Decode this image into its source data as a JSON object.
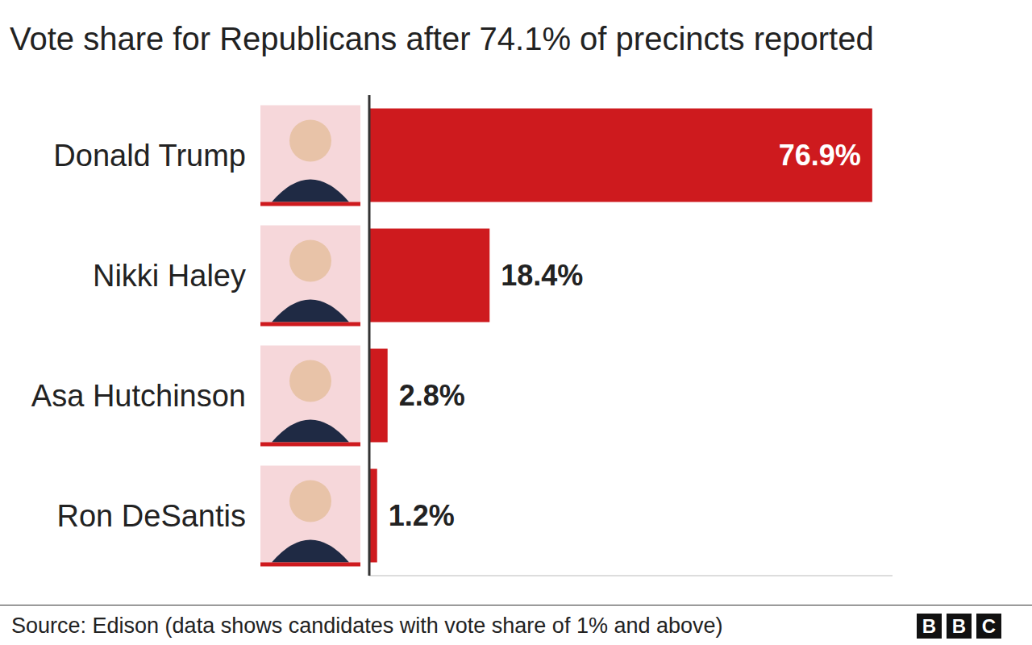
{
  "chart_data": {
    "type": "bar",
    "orientation": "horizontal",
    "title": "Vote share for Republicans after 74.1% of precincts reported",
    "source": "Source: Edison (data shows candidates with vote share of 1% and above)",
    "logo": "BBC",
    "categories": [
      "Donald Trump",
      "Nikki Haley",
      "Asa Hutchinson",
      "Ron DeSantis"
    ],
    "values": [
      76.9,
      18.4,
      2.8,
      1.2
    ],
    "value_labels": [
      "76.9%",
      "18.4%",
      "2.8%",
      "1.2%"
    ],
    "data_labels": true,
    "color": "#ce1a1e",
    "xlim": [
      0,
      80
    ],
    "xticks": [],
    "tick_labels": "y",
    "grid": false
  }
}
